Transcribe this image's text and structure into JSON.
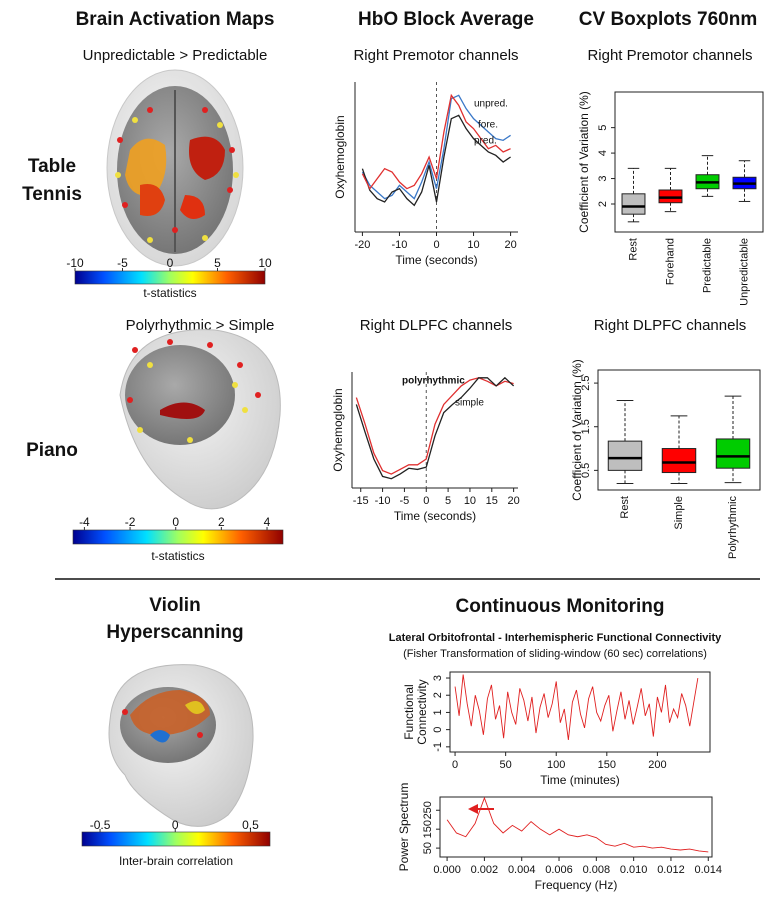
{
  "columns": [
    "Brain Activation Maps",
    "HbO Block Average",
    "CV Boxplots 760nm"
  ],
  "rows": [
    [
      "Table",
      "Tennis"
    ],
    [
      "Piano"
    ],
    [
      "Violin",
      "Hyperscanning"
    ]
  ],
  "section": "Continuous Monitoring",
  "brain_maps": [
    {
      "title": "Unpredictable > Predictable",
      "colorbar": {
        "lim": [
          -10,
          10
        ],
        "ticks": [
          -10,
          -5,
          0,
          5,
          10
        ],
        "label": "t-statistics"
      }
    },
    {
      "title": "Polyrhythmic > Simple",
      "colorbar": {
        "lim": [
          -4.5,
          4.7
        ],
        "ticks": [
          -4,
          -2,
          0,
          2,
          4
        ],
        "label": "t-statistics"
      }
    },
    {
      "colorbar": {
        "lim": [
          -0.62,
          0.63
        ],
        "ticks": [
          -0.5,
          0,
          0.5
        ],
        "label": "Inter-brain correlation"
      }
    }
  ],
  "chart_data": [
    {
      "type": "line",
      "title": "Right Premotor channels",
      "xlabel": "Time (seconds)",
      "ylabel": "Oxyhemoglobin",
      "x": [
        -20,
        -18,
        -16,
        -14,
        -12,
        -10,
        -8,
        -6,
        -4,
        -2,
        0,
        2,
        4,
        6,
        8,
        10,
        12,
        14,
        16,
        18,
        20
      ],
      "xlim": [
        -22,
        22
      ],
      "xticks": [
        -20,
        -10,
        0,
        10,
        20
      ],
      "ylim": [
        0.1,
        1.0
      ],
      "vline": 0,
      "series": [
        {
          "name": "unpred.",
          "color": "#3a78c8",
          "values": [
            0.46,
            0.38,
            0.34,
            0.3,
            0.32,
            0.38,
            0.34,
            0.3,
            0.4,
            0.52,
            0.36,
            0.6,
            0.9,
            0.92,
            0.84,
            0.78,
            0.74,
            0.7,
            0.66,
            0.65,
            0.68
          ]
        },
        {
          "name": "fore.",
          "color": "#222222",
          "values": [
            0.48,
            0.35,
            0.3,
            0.28,
            0.34,
            0.36,
            0.3,
            0.26,
            0.34,
            0.5,
            0.28,
            0.55,
            0.78,
            0.8,
            0.72,
            0.66,
            0.62,
            0.58,
            0.56,
            0.52,
            0.55
          ]
        },
        {
          "name": "pred.",
          "color": "#e03030",
          "values": [
            0.45,
            0.36,
            0.42,
            0.48,
            0.46,
            0.4,
            0.36,
            0.38,
            0.45,
            0.55,
            0.42,
            0.7,
            0.92,
            0.86,
            0.76,
            0.72,
            0.66,
            0.6,
            0.62,
            0.58,
            0.6
          ]
        }
      ]
    },
    {
      "type": "line",
      "title": "Right DLPFC channels",
      "xlabel": "Time (seconds)",
      "ylabel": "Oxyhemoglobin",
      "x": [
        -16,
        -14,
        -12,
        -10,
        -8,
        -6,
        -4,
        -2,
        0,
        2,
        4,
        6,
        8,
        10,
        12,
        14,
        16,
        18,
        20
      ],
      "xlim": [
        -17,
        21
      ],
      "xticks": [
        -15,
        -10,
        -5,
        0,
        5,
        10,
        15,
        20
      ],
      "ylim": [
        0,
        1
      ],
      "vline": 0,
      "series": [
        {
          "name": "polyrhythmic",
          "color": "#e03030",
          "values": [
            0.78,
            0.55,
            0.3,
            0.15,
            0.12,
            0.16,
            0.2,
            0.2,
            0.25,
            0.55,
            0.72,
            0.8,
            0.88,
            0.93,
            0.95,
            0.92,
            0.88,
            0.92,
            0.9
          ]
        },
        {
          "name": "simple",
          "color": "#222222",
          "values": [
            0.72,
            0.48,
            0.25,
            0.1,
            0.08,
            0.12,
            0.17,
            0.16,
            0.18,
            0.45,
            0.65,
            0.72,
            0.78,
            0.86,
            0.95,
            0.95,
            0.88,
            0.95,
            0.88
          ]
        }
      ]
    },
    {
      "type": "box",
      "title": "Right Premotor channels",
      "ylabel": "Coefficient of Variation (%)",
      "categories": [
        "Rest",
        "Forehand",
        "Predictable",
        "Unpredictable"
      ],
      "colors": [
        "#bebebe",
        "#ff0000",
        "#00cc00",
        "#0000ff"
      ],
      "ylim": [
        0.9,
        6.4
      ],
      "yticks": [
        2,
        3,
        4,
        5
      ],
      "boxes": [
        {
          "low": 1.3,
          "q1": 1.6,
          "median": 1.9,
          "q3": 2.4,
          "high": 3.4
        },
        {
          "low": 1.7,
          "q1": 2.05,
          "median": 2.25,
          "q3": 2.55,
          "high": 3.4
        },
        {
          "low": 2.3,
          "q1": 2.6,
          "median": 2.85,
          "q3": 3.15,
          "high": 3.9
        },
        {
          "low": 2.1,
          "q1": 2.6,
          "median": 2.8,
          "q3": 3.05,
          "high": 3.7
        }
      ]
    },
    {
      "type": "box",
      "title": "Right DLPFC channels",
      "ylabel": "Coefficient of Variation (%)",
      "categories": [
        "Rest",
        "Simple",
        "Polyrhythmic"
      ],
      "colors": [
        "#bebebe",
        "#ff0000",
        "#00cc00"
      ],
      "ylim": [
        0.05,
        2.8
      ],
      "yticks": [
        0.5,
        1.5,
        2.5
      ],
      "boxes": [
        {
          "low": 0.2,
          "q1": 0.5,
          "median": 0.78,
          "q3": 1.17,
          "high": 2.1
        },
        {
          "low": 0.2,
          "q1": 0.45,
          "median": 0.68,
          "q3": 1.0,
          "high": 1.75
        },
        {
          "low": 0.22,
          "q1": 0.55,
          "median": 0.82,
          "q3": 1.22,
          "high": 2.2
        }
      ]
    },
    {
      "type": "line",
      "title": "Lateral Orbitofrontal - Interhemispheric Functional Connectivity",
      "subtitle": "(Fisher Transformation of sliding-window  (60 sec) correlations)",
      "xlabel": "Time (minutes)",
      "ylabel": [
        "Functional",
        "Connectivity"
      ],
      "x": [
        0,
        4,
        8,
        12,
        16,
        20,
        24,
        28,
        32,
        36,
        40,
        44,
        48,
        52,
        56,
        60,
        64,
        68,
        72,
        76,
        80,
        84,
        88,
        92,
        96,
        100,
        104,
        108,
        112,
        116,
        120,
        124,
        128,
        132,
        136,
        140,
        144,
        148,
        152,
        156,
        160,
        164,
        168,
        172,
        176,
        180,
        184,
        188,
        192,
        196,
        200,
        204,
        208,
        212,
        216,
        220,
        224,
        228,
        232,
        236,
        240
      ],
      "xlim": [
        -5,
        252
      ],
      "xticks": [
        0,
        50,
        100,
        150,
        200
      ],
      "ylim": [
        -1.3,
        3.35
      ],
      "yticks": [
        -1,
        0,
        1,
        2,
        3
      ],
      "series": [
        {
          "color": "#e02020",
          "values": [
            2.5,
            0.8,
            3.2,
            1.5,
            0.2,
            2.0,
            1.1,
            -0.3,
            1.8,
            2.6,
            0.6,
            1.4,
            -0.5,
            2.2,
            1.0,
            0.3,
            2.4,
            1.7,
            0.5,
            1.9,
            -0.2,
            1.3,
            2.1,
            0.7,
            1.5,
            2.8,
            0.4,
            1.2,
            -0.6,
            1.6,
            2.3,
            0.9,
            0.1,
            1.8,
            2.5,
            1.0,
            0.5,
            1.4,
            2.0,
            -0.1,
            1.1,
            2.2,
            0.6,
            1.7,
            0.3,
            1.3,
            2.4,
            0.8,
            1.5,
            -0.4,
            1.9,
            1.0,
            2.6,
            0.4,
            1.2,
            0.7,
            2.1,
            1.4,
            0.2,
            1.6,
            3.0
          ]
        }
      ]
    },
    {
      "type": "line",
      "xlabel": "Frequency (Hz)",
      "ylabel": "Power Spectrum",
      "x": [
        0,
        0.0005,
        0.001,
        0.0015,
        0.002,
        0.0025,
        0.003,
        0.0035,
        0.004,
        0.0045,
        0.005,
        0.0055,
        0.006,
        0.0065,
        0.007,
        0.0075,
        0.008,
        0.0085,
        0.009,
        0.0095,
        0.01,
        0.0105,
        0.011,
        0.0115,
        0.012,
        0.0125,
        0.013,
        0.0135,
        0.014
      ],
      "xlim": [
        -0.00038,
        0.0142
      ],
      "xticks": [
        {
          "value": 0,
          "label": "0.000"
        },
        {
          "value": 0.002,
          "label": "0.002"
        },
        {
          "value": 0.004,
          "label": "0.004"
        },
        {
          "value": 0.006,
          "label": "0.006"
        },
        {
          "value": 0.008,
          "label": "0.008"
        },
        {
          "value": 0.01,
          "label": "0.010"
        },
        {
          "value": 0.012,
          "label": "0.012"
        },
        {
          "value": 0.014,
          "label": "0.014"
        }
      ],
      "ylim": [
        3,
        320
      ],
      "yticks": [
        50,
        150,
        250
      ],
      "series": [
        {
          "color": "#e02020",
          "values": [
            200,
            130,
            110,
            180,
            315,
            180,
            130,
            170,
            140,
            190,
            150,
            120,
            150,
            120,
            110,
            120,
            105,
            70,
            60,
            75,
            55,
            60,
            50,
            55,
            45,
            40,
            45,
            35,
            30
          ]
        }
      ]
    }
  ]
}
